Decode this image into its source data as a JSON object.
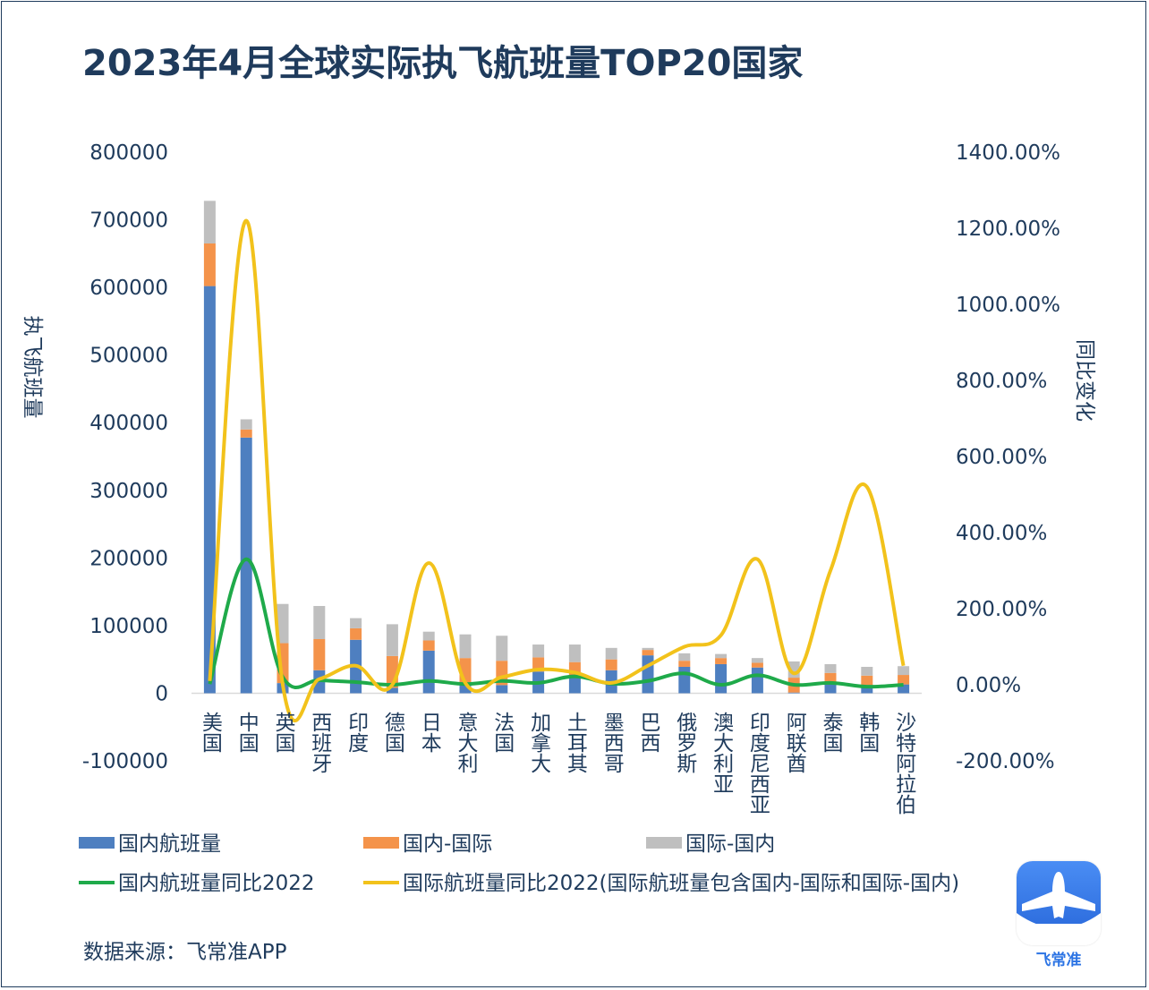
{
  "title": "2023年4月全球实际执飞航班量TOP20国家",
  "source": "数据来源：飞常准APP",
  "logo_text": "飞常准",
  "colors": {
    "domestic": "#4e7fc0",
    "dom_intl": "#f4934a",
    "intl_dom": "#bfbfbf",
    "domestic_yoy": "#1faa4a",
    "intl_yoy": "#f2c21b",
    "text": "#1f3b5c"
  },
  "chart_data": {
    "type": "bar",
    "stacked": true,
    "categories": [
      "美国",
      "中国",
      "英国",
      "西班牙",
      "印度",
      "德国",
      "日本",
      "意大利",
      "法国",
      "加拿大",
      "土耳其",
      "墨西哥",
      "巴西",
      "俄罗斯",
      "澳大利亚",
      "印度尼西亚",
      "阿联酋",
      "泰国",
      "韩国",
      "沙特阿拉伯"
    ],
    "ylabel": "执飞航班量",
    "y2label": "同比变化",
    "ylim": [
      -100000,
      800000
    ],
    "y2lim": [
      -2.0,
      14.0
    ],
    "yticks": [
      "800000",
      "700000",
      "600000",
      "500000",
      "400000",
      "300000",
      "200000",
      "100000",
      "0",
      "-100000"
    ],
    "y2ticks": [
      "1400.00%",
      "1200.00%",
      "1000.00%",
      "800.00%",
      "600.00%",
      "400.00%",
      "200.00%",
      "0.00%",
      "-200.00%"
    ],
    "series": [
      {
        "name": "国内航班量",
        "kind": "bar",
        "axis": "left",
        "color_key": "domestic",
        "values": [
          602000,
          378000,
          15000,
          34000,
          79000,
          8000,
          63000,
          12000,
          12000,
          32000,
          27000,
          34000,
          56000,
          39000,
          43000,
          38000,
          1000,
          17000,
          11000,
          13000
        ]
      },
      {
        "name": "国内-国际",
        "kind": "bar",
        "axis": "left",
        "color_key": "dom_intl",
        "values": [
          63000,
          12000,
          59000,
          46000,
          17000,
          47000,
          15000,
          40000,
          36000,
          21000,
          19000,
          16000,
          8000,
          9000,
          9000,
          7000,
          22000,
          13000,
          15000,
          14000
        ]
      },
      {
        "name": "国际-国内",
        "kind": "bar",
        "axis": "left",
        "color_key": "intl_dom",
        "values": [
          63000,
          15000,
          58000,
          49000,
          15000,
          47000,
          13000,
          35000,
          37000,
          19000,
          26000,
          17000,
          3000,
          11000,
          6000,
          7000,
          24000,
          13000,
          13000,
          13000
        ]
      },
      {
        "name": "国内航班量同比2022",
        "kind": "line",
        "axis": "right",
        "color_key": "domestic_yoy",
        "values": [
          0.02,
          3.3,
          0.2,
          0.12,
          0.07,
          0.0,
          0.1,
          0.02,
          0.1,
          0.05,
          0.22,
          0.03,
          0.1,
          0.3,
          0.0,
          0.25,
          0.0,
          0.05,
          -0.05,
          0.0
        ]
      },
      {
        "name": "国际航班量同比2022(国际航班量包含国内-国际和国际-国内)",
        "kind": "line",
        "axis": "right",
        "color_key": "intl_yoy",
        "values": [
          0.1,
          12.2,
          0.0,
          0.15,
          0.5,
          0.0,
          3.2,
          0.05,
          0.2,
          0.4,
          0.32,
          0.05,
          0.5,
          1.0,
          1.3,
          3.3,
          0.3,
          3.0,
          5.2,
          0.5
        ]
      }
    ],
    "legend_position": "bottom",
    "grid": false
  }
}
